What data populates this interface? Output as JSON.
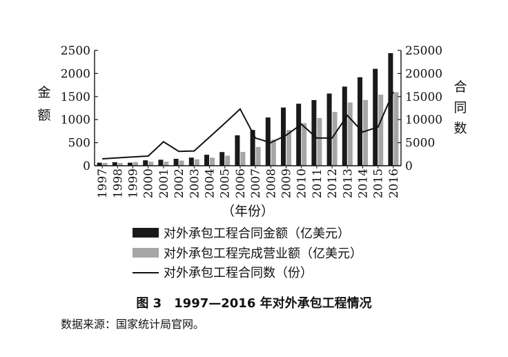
{
  "chart_data": {
    "type": "bar",
    "categories": [
      "1997",
      "1998",
      "1999",
      "2000",
      "2001",
      "2002",
      "2003",
      "2004",
      "2005",
      "2006",
      "2007",
      "2008",
      "2009",
      "2010",
      "2011",
      "2012",
      "2013",
      "2014",
      "2015",
      "2016"
    ],
    "series": [
      {
        "name": "对外承包工程合同金额（亿美元）",
        "kind": "bar",
        "axis": "left",
        "color": "#1a1a1a",
        "values": [
          65,
          77,
          66,
          117,
          130,
          150,
          176,
          238,
          296,
          660,
          776,
          1046,
          1262,
          1344,
          1423,
          1565,
          1716,
          1918,
          2101,
          2440
        ]
      },
      {
        "name": "对外承包工程完成营业额（亿美元）",
        "kind": "bar",
        "axis": "left",
        "color": "#a6a6a6",
        "values": [
          60,
          59,
          79,
          87,
          89,
          112,
          138,
          175,
          218,
          300,
          406,
          566,
          777,
          922,
          1034,
          1166,
          1371,
          1424,
          1541,
          1594
        ]
      },
      {
        "name": "对外承包工程合同数（份）",
        "kind": "line",
        "axis": "right",
        "color": "#111111",
        "values": [
          1500,
          1700,
          1900,
          2100,
          5200,
          3100,
          3200,
          6200,
          9200,
          12300,
          6000,
          5000,
          6600,
          9000,
          6000,
          6000,
          10900,
          7300,
          8400,
          16000
        ]
      }
    ],
    "y_left": {
      "label": "金额",
      "ylim": [
        0,
        2500
      ],
      "ticks": [
        "0",
        "500",
        "1000",
        "1500",
        "2000",
        "2500"
      ]
    },
    "y_right": {
      "label": "合同数",
      "ylim": [
        0,
        25000
      ],
      "ticks": [
        "0",
        "5000",
        "10000",
        "15000",
        "20000",
        "25000"
      ]
    },
    "xlabel": "（年份）",
    "legend_position": "bottom",
    "grid": false
  },
  "caption": "图 3　1997—2016 年对外承包工程情况",
  "source": "数据来源：国家统计局官网。"
}
